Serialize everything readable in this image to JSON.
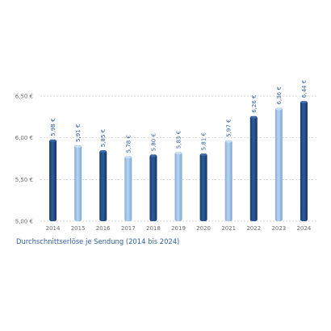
{
  "chart_data": {
    "type": "bar",
    "caption": "Durchschnittserlöse je Sendung (2014 bis 2024)",
    "categories": [
      "2014",
      "2015",
      "2016",
      "2017",
      "2018",
      "2019",
      "2020",
      "2021",
      "2022",
      "2023",
      "2024"
    ],
    "values": [
      5.98,
      5.91,
      5.85,
      5.78,
      5.8,
      5.83,
      5.81,
      5.97,
      6.26,
      6.36,
      6.44
    ],
    "value_labels": [
      "5,98 €",
      "5,91 €",
      "5,85 €",
      "5,78 €",
      "5,80 €",
      "5,83 €",
      "5,81 €",
      "5,97 €",
      "6,26 €",
      "6,36 €",
      "6,44 €"
    ],
    "y_ticks": [
      5.0,
      5.5,
      6.0,
      6.5
    ],
    "y_tick_labels": [
      "5,00 €",
      "5,50 €",
      "6,00 €",
      "6,50 €"
    ],
    "ylim": [
      5.0,
      6.6
    ],
    "grid": true,
    "bar_colors": [
      "#1e4a85",
      "#9ec1e6",
      "#1e4a85",
      "#9ec1e6",
      "#1e4a85",
      "#9ec1e6",
      "#1e4a85",
      "#9ec1e6",
      "#1e4a85",
      "#9ec1e6",
      "#1e4a85"
    ],
    "label_color": "#2f5f9e"
  }
}
